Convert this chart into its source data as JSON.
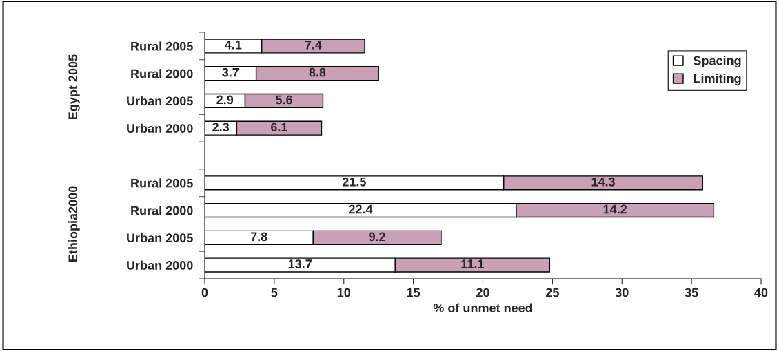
{
  "chart_data": {
    "type": "bar",
    "orientation": "horizontal",
    "stacked": true,
    "data_labels": true,
    "categories": [
      "Rural 2005",
      "Rural 2000",
      "Urban 2005",
      "Urban 2000",
      null,
      "Rural 2005",
      "Rural 2000",
      "Urban 2005",
      "Urban 2000"
    ],
    "series": [
      {
        "name": "Spacing",
        "color": "#ffffff",
        "values": [
          4.1,
          3.7,
          2.9,
          2.3,
          null,
          21.5,
          22.4,
          7.8,
          13.7
        ]
      },
      {
        "name": "Limiting",
        "color": "#c9a0b5",
        "values": [
          7.4,
          8.8,
          5.6,
          6.1,
          null,
          14.3,
          14.2,
          9.2,
          11.1
        ]
      }
    ],
    "xlabel": "% of unmet need",
    "xlim": [
      0,
      40
    ],
    "xticks": [
      0,
      5,
      10,
      15,
      20,
      25,
      30,
      35,
      40
    ],
    "annotations": [
      "Egypt 2005",
      "Ethiopia2000"
    ],
    "legend": "top right",
    "grid": false
  }
}
